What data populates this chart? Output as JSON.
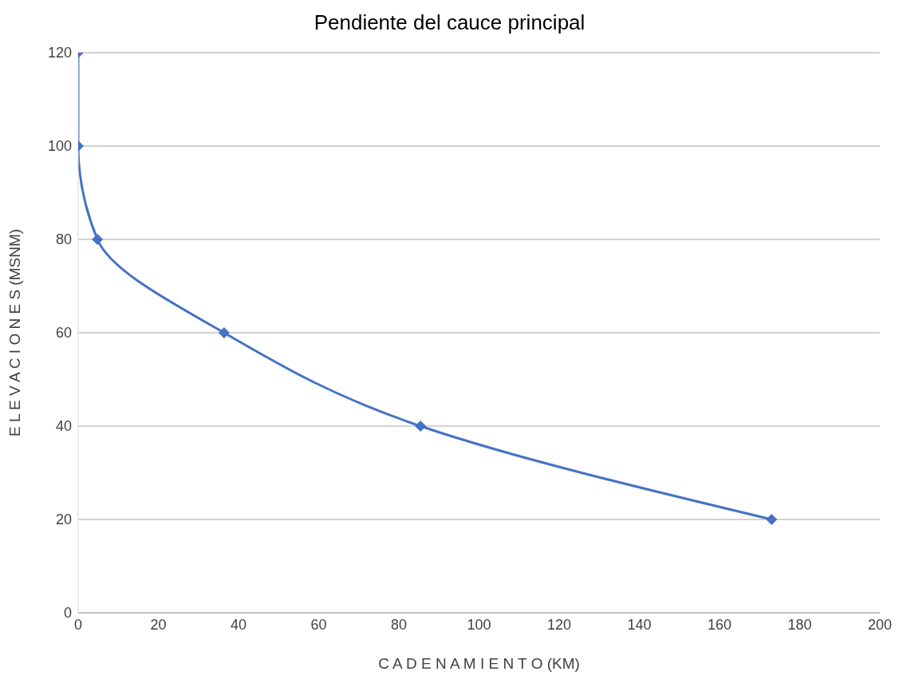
{
  "chart_data": {
    "type": "line",
    "title": "Pendiente del cauce principal",
    "xlabel": "C A D E N A M I E N T O (KM)",
    "ylabel": "E L E V A C I O N E S (MSNM)",
    "x": [
      0,
      0,
      4.8,
      36.4,
      85.4,
      173
    ],
    "series": [
      {
        "color": "#4472c4",
        "values": [
          120,
          100,
          80,
          60,
          40,
          20
        ]
      }
    ],
    "xlim": [
      0,
      200
    ],
    "xticks": [
      0,
      20,
      40,
      60,
      80,
      100,
      120,
      140,
      160,
      180,
      200
    ],
    "ylim": [
      0,
      120
    ],
    "yticks": [
      0,
      20,
      40,
      60,
      80,
      100,
      120
    ],
    "grid": "y",
    "marker": "diamond",
    "line_style": "solid",
    "legend": false
  }
}
